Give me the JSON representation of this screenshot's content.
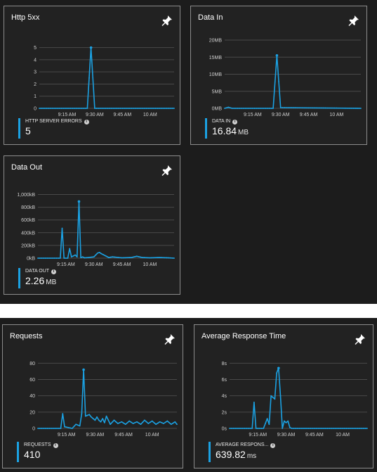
{
  "colors": {
    "series": "#1ba1e2",
    "background": "#1c1c1c",
    "tile": "#222222",
    "border": "#8c8c8c",
    "grid": "#4a4a4a"
  },
  "icons": {
    "pin": "pin-icon",
    "info": "info-icon"
  },
  "tiles": [
    {
      "title": "Http 5xx",
      "legend": {
        "label": "HTTP SERVER ERRORS",
        "value": "5",
        "unit": ""
      },
      "chart_data": {
        "type": "line",
        "y_ticks": [
          "0",
          "1",
          "2",
          "3",
          "4",
          "5"
        ],
        "ylim": [
          0,
          5.5
        ],
        "x_tick_labels": [
          "9:15 AM",
          "9:30 AM",
          "9:45 AM",
          "10 AM"
        ],
        "x_tick_minutes": [
          15,
          30,
          45,
          60
        ],
        "xlim": [
          0,
          73
        ],
        "series": [
          {
            "x": [
              0,
              26,
              28,
              30,
              73
            ],
            "y": [
              0,
              0,
              5,
              0,
              0
            ]
          }
        ]
      }
    },
    {
      "title": "Data In",
      "legend": {
        "label": "DATA IN",
        "value": "16.84",
        "unit": "MB"
      },
      "chart_data": {
        "type": "line",
        "y_ticks": [
          "0MB",
          "5MB",
          "10MB",
          "15MB",
          "20MB"
        ],
        "ylim": [
          0,
          20
        ],
        "x_tick_labels": [
          "9:15 AM",
          "9:30 AM",
          "9:45 AM",
          "10 AM"
        ],
        "x_tick_minutes": [
          15,
          30,
          45,
          60
        ],
        "xlim": [
          0,
          73
        ],
        "series": [
          {
            "x": [
              0,
              2,
              4,
              26,
              28,
              30,
              73
            ],
            "y": [
              0,
              0.3,
              0,
              0,
              15.5,
              0.2,
              0
            ]
          }
        ]
      }
    },
    {
      "title": "Data Out",
      "legend": {
        "label": "DATA OUT",
        "value": "2.26",
        "unit": "MB"
      },
      "chart_data": {
        "type": "line",
        "y_ticks": [
          "0kB",
          "200kB",
          "400kB",
          "600kB",
          "800kB",
          "1,000kB"
        ],
        "ylim": [
          0,
          1050
        ],
        "x_tick_labels": [
          "9:15 AM",
          "9:30 AM",
          "9:45 AM",
          "10 AM"
        ],
        "x_tick_minutes": [
          15,
          30,
          45,
          60
        ],
        "xlim": [
          0,
          73
        ],
        "series": [
          {
            "x": [
              0,
              12,
              13,
              14,
              16,
              17,
              18,
              20,
              21,
              22,
              23,
              24,
              25,
              27,
              30,
              32,
              33,
              34,
              36,
              38,
              40,
              45,
              50,
              53,
              56,
              60,
              65,
              70,
              73
            ],
            "y": [
              0,
              0,
              470,
              0,
              0,
              150,
              20,
              50,
              20,
              890,
              10,
              20,
              5,
              10,
              20,
              80,
              90,
              70,
              40,
              10,
              20,
              5,
              10,
              30,
              10,
              5,
              10,
              5,
              0
            ]
          }
        ]
      }
    },
    {
      "title": "Requests",
      "legend": {
        "label": "REQUESTS",
        "value": "410",
        "unit": ""
      },
      "chart_data": {
        "type": "line",
        "y_ticks": [
          "0",
          "20",
          "40",
          "60",
          "80"
        ],
        "ylim": [
          0,
          82
        ],
        "x_tick_labels": [
          "9:15 AM",
          "9:30 AM",
          "9:45 AM",
          "10 AM"
        ],
        "x_tick_minutes": [
          15,
          30,
          45,
          60
        ],
        "xlim": [
          0,
          73
        ],
        "series": [
          {
            "x": [
              0,
              12,
              13,
              14,
              18,
              20,
              22,
              23,
              24,
              25,
              26,
              27,
              28,
              29,
              30,
              31,
              32,
              33,
              34,
              35,
              36,
              38,
              40,
              42,
              44,
              46,
              48,
              50,
              52,
              54,
              56,
              58,
              60,
              62,
              64,
              66,
              68,
              70,
              72,
              73
            ],
            "y": [
              0,
              0,
              18,
              2,
              0,
              5,
              3,
              18,
              72,
              15,
              16,
              17,
              14,
              12,
              10,
              14,
              10,
              8,
              12,
              7,
              15,
              5,
              10,
              6,
              8,
              5,
              9,
              6,
              8,
              5,
              10,
              6,
              9,
              5,
              8,
              6,
              9,
              5,
              8,
              5
            ]
          }
        ]
      }
    },
    {
      "title": "Average Response Time",
      "legend": {
        "label": "AVERAGE RESPONS...",
        "value": "639.82",
        "unit": "ms"
      },
      "chart_data": {
        "type": "line",
        "y_ticks": [
          "0s",
          "2s",
          "4s",
          "6s",
          "8s"
        ],
        "ylim": [
          0,
          8.2
        ],
        "x_tick_labels": [
          "9:15 AM",
          "9:30 AM",
          "9:45 AM",
          "10 AM"
        ],
        "x_tick_minutes": [
          15,
          30,
          45,
          60
        ],
        "xlim": [
          0,
          73
        ],
        "series": [
          {
            "x": [
              0,
              12,
              13,
              14,
              18,
              20,
              21,
              22,
              23,
              24,
              25,
              26,
              27,
              28,
              29,
              30,
              31,
              32,
              33,
              34,
              73
            ],
            "y": [
              0,
              0,
              3.2,
              0,
              0,
              1.2,
              0.5,
              4,
              3.8,
              3.6,
              6.8,
              7.4,
              4,
              0,
              0.9,
              0.7,
              0.9,
              0.1,
              0,
              0,
              0
            ]
          }
        ]
      }
    }
  ]
}
